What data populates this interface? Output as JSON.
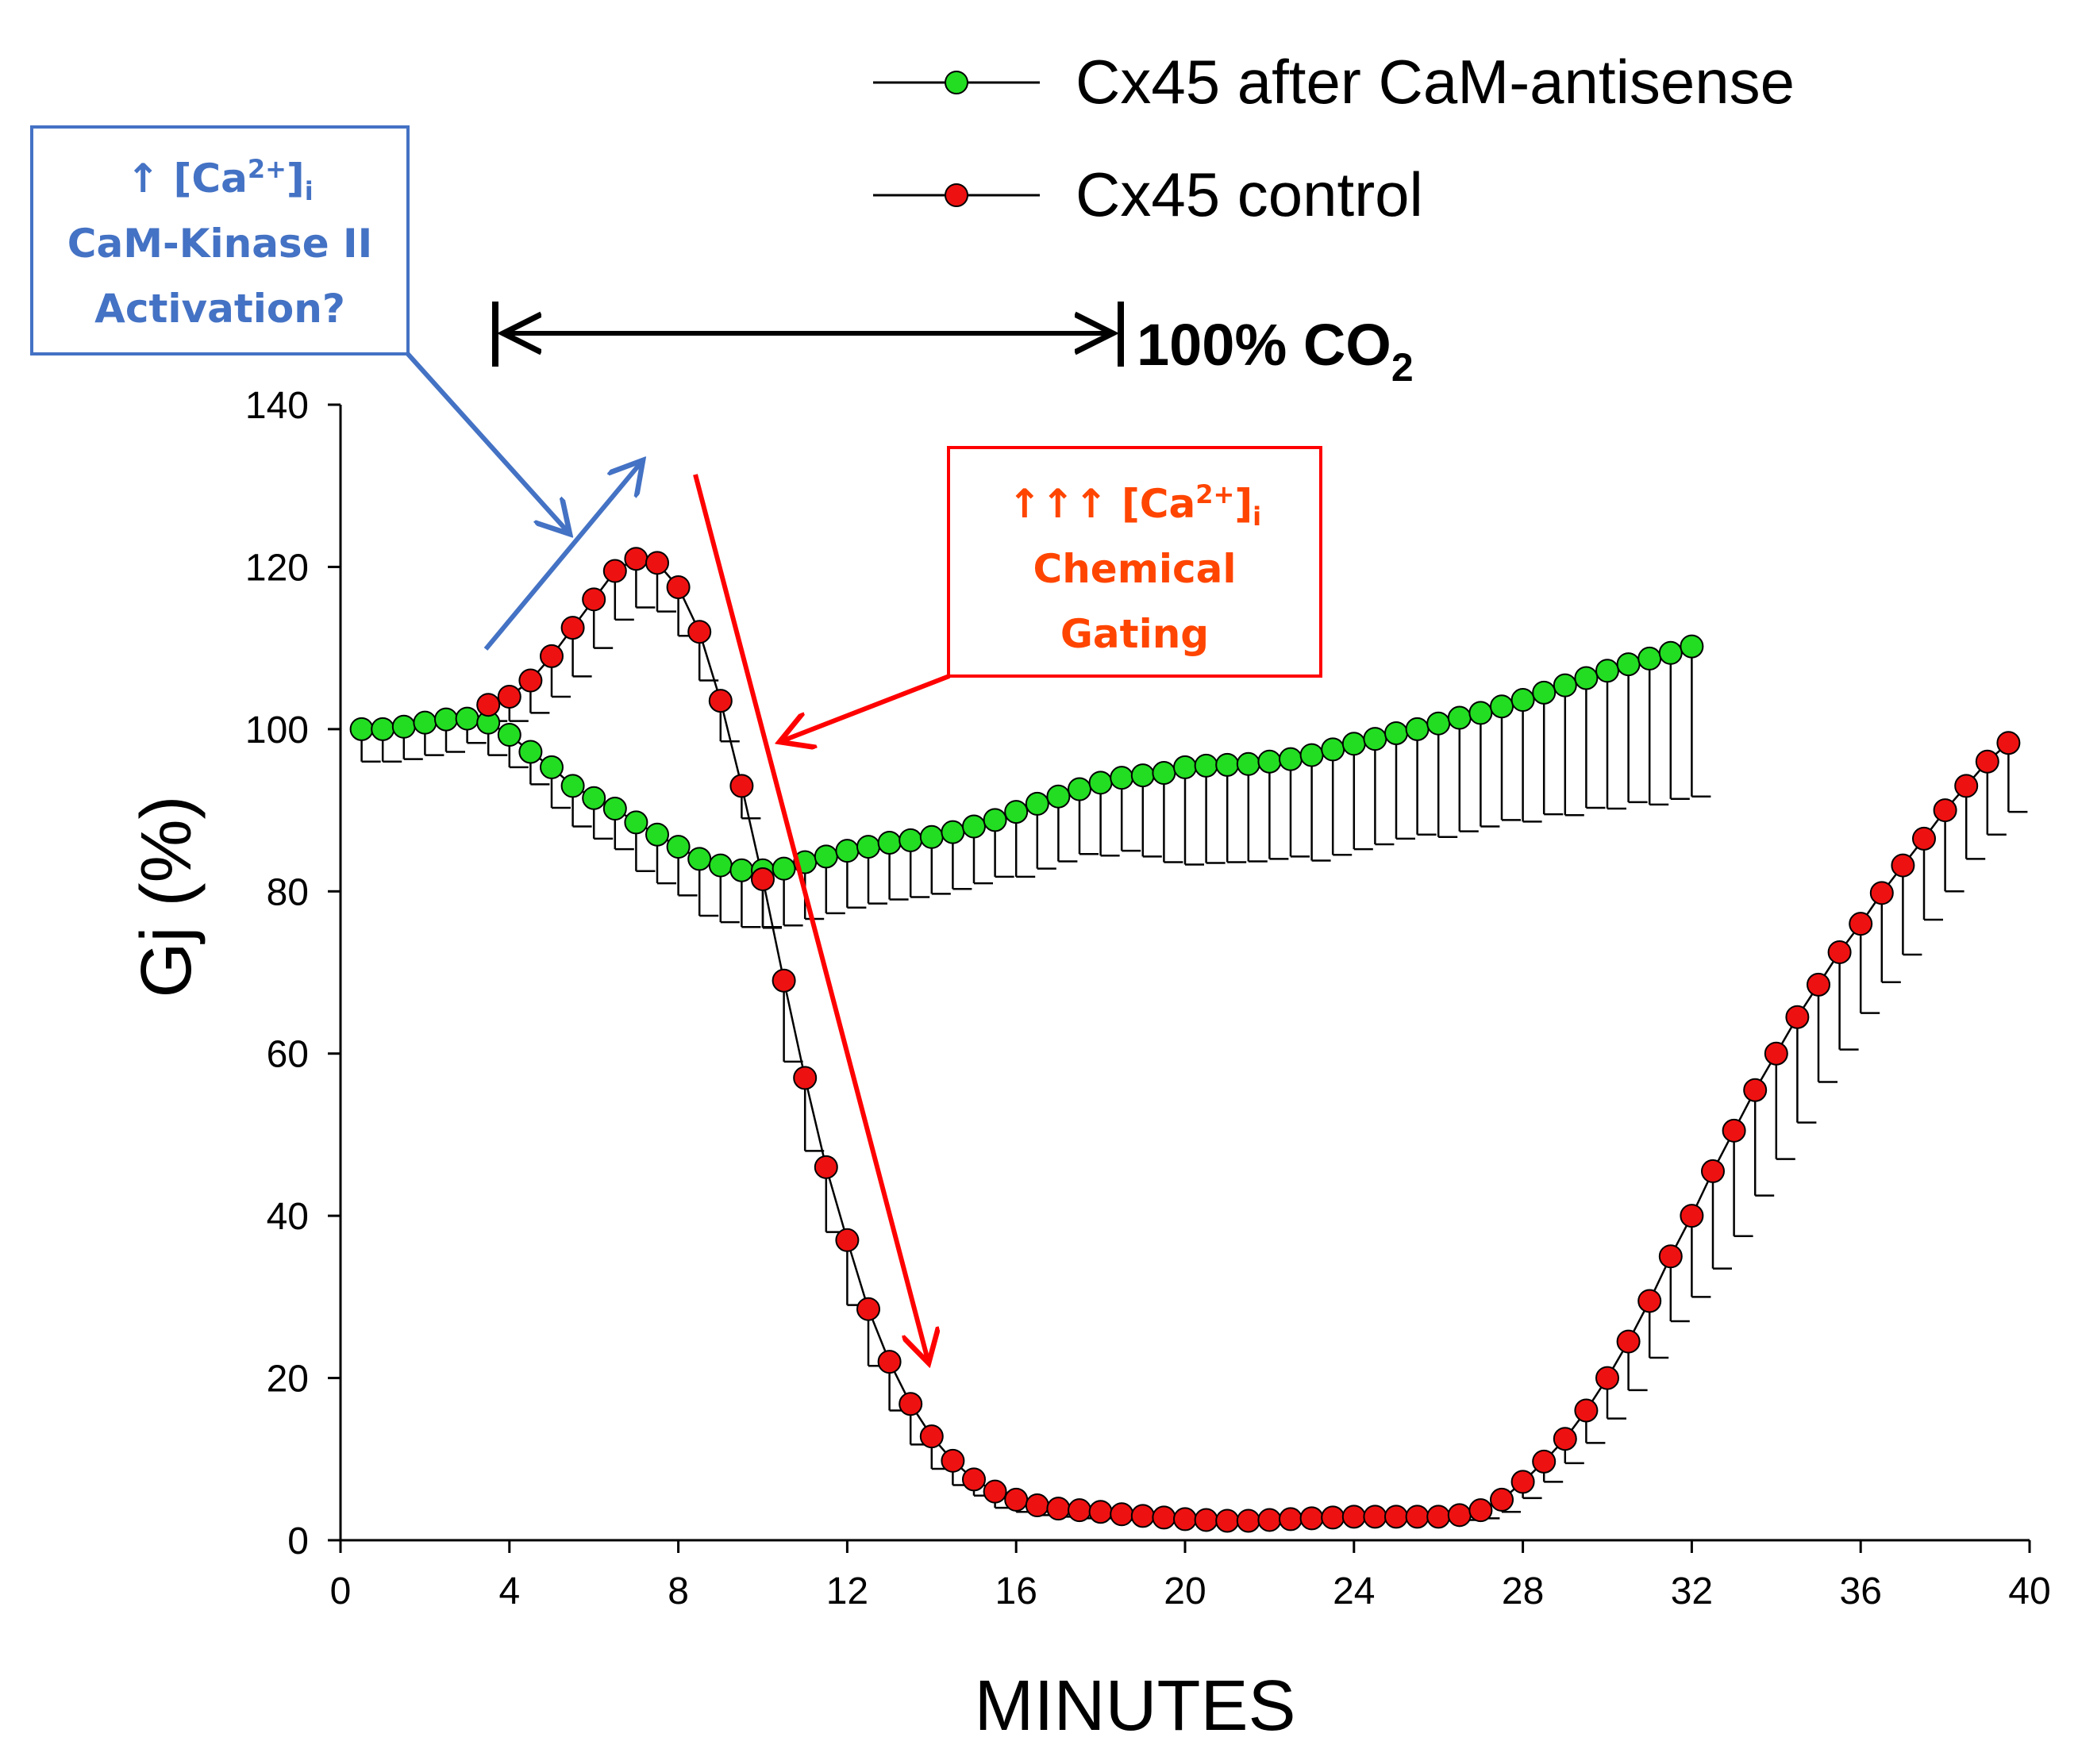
{
  "chart_data": {
    "type": "line",
    "xlabel": "MINUTES",
    "ylabel": "Gj (%)",
    "xlim": [
      0,
      40
    ],
    "ylim": [
      0,
      140
    ],
    "xticks": [
      0,
      4,
      8,
      12,
      16,
      20,
      24,
      28,
      32,
      36,
      40
    ],
    "yticks": [
      0,
      20,
      40,
      60,
      80,
      100,
      120,
      140
    ],
    "grid": false,
    "legend_position": "top",
    "colors": {
      "green": "#22DD22",
      "red": "#EE1111",
      "line": "#000000",
      "blue_annot": "#4472C4",
      "red_annot": "#FF0000",
      "red_text": "#FF4500"
    },
    "series": [
      {
        "name": "Cx45 after CaM-antisense",
        "color": "#22DD22",
        "error_dir": "down",
        "x": [
          0.5,
          1,
          1.5,
          2,
          2.5,
          3,
          3.5,
          4,
          4.5,
          5,
          5.5,
          6,
          6.5,
          7,
          7.5,
          8,
          8.5,
          9,
          9.5,
          10,
          10.5,
          11,
          11.5,
          12,
          12.5,
          13,
          13.5,
          14,
          14.5,
          15,
          15.5,
          16,
          16.5,
          17,
          17.5,
          18,
          18.5,
          19,
          19.5,
          20,
          20.5,
          21,
          21.5,
          22,
          22.5,
          23,
          23.5,
          24,
          24.5,
          25,
          25.5,
          26,
          26.5,
          27,
          27.5,
          28,
          28.5,
          29,
          29.5,
          30,
          30.5,
          31,
          31.5,
          32
        ],
        "values": [
          100,
          100,
          100.3,
          100.8,
          101.2,
          101.3,
          100.8,
          99.3,
          97.2,
          95.3,
          93,
          91.5,
          90.2,
          88.5,
          87,
          85.5,
          84,
          83.2,
          82.6,
          82.6,
          82.8,
          83.6,
          84.3,
          85,
          85.5,
          86,
          86.3,
          86.7,
          87.3,
          88,
          88.8,
          89.8,
          90.8,
          91.7,
          92.6,
          93.4,
          94,
          94.3,
          94.6,
          95.3,
          95.5,
          95.6,
          95.7,
          96,
          96.3,
          96.8,
          97.5,
          98.2,
          98.8,
          99.5,
          100,
          100.7,
          101.4,
          102,
          102.8,
          103.6,
          104.5,
          105.4,
          106.3,
          107.2,
          108,
          108.7,
          109.4,
          110.2
        ],
        "errors": [
          4,
          4,
          4,
          4,
          4,
          3,
          4,
          4,
          4,
          5,
          5,
          5,
          5,
          6,
          6,
          6,
          7,
          7,
          7,
          7,
          7,
          7,
          7,
          7,
          7,
          7,
          7,
          7,
          7,
          7,
          7,
          8,
          8,
          8,
          8,
          9,
          9,
          10,
          11,
          12,
          12,
          12,
          12,
          12,
          12,
          13,
          13,
          13,
          13,
          13,
          13,
          14,
          14,
          14,
          14,
          15,
          15,
          16,
          16,
          17,
          17,
          18,
          18,
          18.5
        ]
      },
      {
        "name": "Cx45 control",
        "color": "#EE1111",
        "error_dir": "down",
        "x": [
          3.5,
          4,
          4.5,
          5,
          5.5,
          6,
          6.5,
          7,
          7.5,
          8,
          8.5,
          9,
          9.5,
          10,
          10.5,
          11,
          11.5,
          12,
          12.5,
          13,
          13.5,
          14,
          14.5,
          15,
          15.5,
          16,
          16.5,
          17,
          17.5,
          18,
          18.5,
          19,
          19.5,
          20,
          20.5,
          21,
          21.5,
          22,
          22.5,
          23,
          23.5,
          24,
          24.5,
          25,
          25.5,
          26,
          26.5,
          27,
          27.5,
          28,
          28.5,
          29,
          29.5,
          30,
          30.5,
          31,
          31.5,
          32,
          32.5,
          33,
          33.5,
          34,
          34.5,
          35,
          35.5,
          36,
          36.5,
          37,
          37.5,
          38,
          38.5,
          39,
          39.5
        ],
        "values": [
          103,
          104,
          106,
          109,
          112.5,
          116,
          119.5,
          121,
          120.5,
          117.5,
          112,
          103.5,
          93,
          81.5,
          69,
          57,
          46,
          37,
          28.5,
          22,
          16.8,
          12.8,
          9.8,
          7.5,
          6,
          5,
          4.3,
          3.9,
          3.7,
          3.5,
          3.2,
          3,
          2.8,
          2.6,
          2.5,
          2.4,
          2.4,
          2.5,
          2.6,
          2.7,
          2.8,
          2.9,
          2.9,
          2.9,
          2.9,
          2.9,
          3.1,
          3.7,
          5,
          7.2,
          9.7,
          12.5,
          16,
          20,
          24.5,
          29.5,
          35,
          40,
          45.5,
          50.5,
          55.5,
          60,
          64.5,
          68.5,
          72.5,
          76,
          79.8,
          83.2,
          86.5,
          90,
          93,
          96,
          98.3
        ],
        "errors": [
          2,
          3,
          4,
          5,
          6,
          6,
          6,
          6,
          6,
          6,
          6,
          5,
          4,
          6,
          10,
          9,
          8,
          8,
          7,
          6,
          5,
          4,
          3,
          2,
          2,
          1.5,
          1.2,
          1,
          1,
          0.8,
          0.7,
          0.6,
          0.5,
          0.5,
          0.4,
          0.4,
          0.4,
          0.4,
          0.4,
          0.4,
          0.4,
          0.4,
          0.4,
          0.4,
          0.4,
          0.4,
          0.6,
          1,
          1.5,
          2,
          2.5,
          3,
          4,
          5,
          6,
          7,
          8,
          10,
          12,
          13,
          13,
          13,
          13,
          12,
          12,
          11,
          11,
          11,
          10,
          10,
          9,
          9,
          8.5
        ]
      }
    ],
    "co2_bar": {
      "label_main": "100% CO",
      "label_sub": "2",
      "start": 3.7,
      "end": 18.5
    },
    "blue_note": {
      "arrow": "↑",
      "ion_open": " [Ca",
      "ion_sup": "2+",
      "ion_close": "]",
      "ion_sub": "i",
      "line2": "CaM-Kinase II",
      "line3": "Activation?"
    },
    "red_note": {
      "arrows": "↑↑↑",
      "ion_open": " [Ca",
      "ion_sup": "2+",
      "ion_close": "]",
      "ion_sub": "i",
      "line2": "Chemical",
      "line3": "Gating"
    }
  }
}
